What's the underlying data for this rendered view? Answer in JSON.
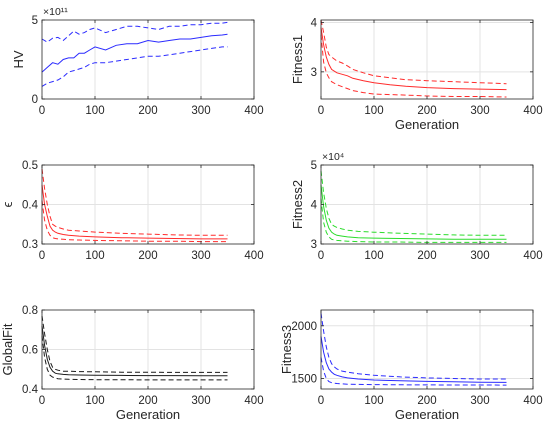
{
  "chart_data": [
    {
      "type": "line",
      "ylabel": "HV",
      "xlabel": "",
      "color": "#2b2bff",
      "xlim": [
        0,
        400
      ],
      "ylim": [
        0,
        5
      ],
      "xticks": [
        0,
        100,
        200,
        300,
        400
      ],
      "xtick_labels": [
        "0",
        "100",
        "200",
        "300",
        "400"
      ],
      "yticks": [
        0,
        5
      ],
      "ytick_labels": [
        "0",
        "5"
      ],
      "exponent_label": "×10¹¹",
      "grid": true,
      "x": [
        0,
        10,
        20,
        30,
        40,
        50,
        60,
        70,
        80,
        90,
        100,
        120,
        140,
        160,
        180,
        200,
        220,
        240,
        260,
        280,
        300,
        320,
        340,
        350
      ],
      "series": [
        {
          "style": "dashed",
          "values": [
            3.8,
            3.6,
            3.85,
            3.9,
            3.7,
            4.0,
            4.3,
            4.1,
            4.2,
            4.4,
            4.5,
            4.2,
            4.4,
            4.6,
            4.6,
            4.5,
            4.4,
            4.6,
            4.6,
            4.7,
            4.7,
            4.8,
            4.8,
            4.85
          ]
        },
        {
          "style": "solid",
          "values": [
            1.7,
            2.0,
            2.3,
            2.2,
            2.5,
            2.6,
            2.6,
            2.9,
            2.9,
            3.1,
            3.3,
            3.1,
            3.4,
            3.5,
            3.5,
            3.7,
            3.6,
            3.7,
            3.8,
            3.8,
            3.9,
            4.0,
            4.05,
            4.1
          ]
        },
        {
          "style": "dashed",
          "values": [
            0.8,
            1.0,
            1.1,
            1.2,
            1.4,
            1.7,
            1.8,
            1.9,
            2.0,
            2.2,
            2.3,
            2.3,
            2.4,
            2.5,
            2.6,
            2.7,
            2.7,
            2.8,
            2.9,
            3.0,
            3.1,
            3.2,
            3.3,
            3.3
          ]
        }
      ]
    },
    {
      "type": "line",
      "ylabel": "Fitness1",
      "xlabel": "Generation",
      "color": "#ff2b2b",
      "xlim": [
        0,
        400
      ],
      "ylim": [
        2.45,
        4.05
      ],
      "xticks": [
        0,
        100,
        200,
        300,
        400
      ],
      "xtick_labels": [
        "0",
        "100",
        "200",
        "300",
        "400"
      ],
      "yticks": [
        3,
        4
      ],
      "ytick_labels": [
        "3",
        "4"
      ],
      "exponent_label": "",
      "grid": true,
      "x": [
        0,
        5,
        10,
        15,
        20,
        30,
        40,
        50,
        60,
        80,
        100,
        130,
        160,
        200,
        250,
        300,
        350
      ],
      "series": [
        {
          "style": "dashed",
          "values": [
            4.05,
            3.8,
            3.5,
            3.35,
            3.3,
            3.22,
            3.18,
            3.12,
            3.05,
            2.98,
            2.92,
            2.88,
            2.84,
            2.82,
            2.8,
            2.78,
            2.76
          ]
        },
        {
          "style": "solid",
          "values": [
            3.9,
            3.55,
            3.3,
            3.15,
            3.05,
            2.98,
            2.95,
            2.92,
            2.87,
            2.82,
            2.78,
            2.74,
            2.71,
            2.68,
            2.66,
            2.65,
            2.64
          ]
        },
        {
          "style": "dashed",
          "values": [
            3.75,
            3.2,
            2.98,
            2.88,
            2.8,
            2.74,
            2.7,
            2.66,
            2.62,
            2.58,
            2.55,
            2.54,
            2.53,
            2.51,
            2.5,
            2.5,
            2.49
          ]
        }
      ]
    },
    {
      "type": "line",
      "ylabel": "ϵ",
      "xlabel": "",
      "color": "#ff2b2b",
      "xlim": [
        0,
        400
      ],
      "ylim": [
        0.3,
        0.5
      ],
      "xticks": [
        0,
        100,
        200,
        300,
        400
      ],
      "xtick_labels": [
        "0",
        "100",
        "200",
        "300",
        "400"
      ],
      "yticks": [
        0.3,
        0.4,
        0.5
      ],
      "ytick_labels": [
        "0.3",
        "0.4",
        "0.5"
      ],
      "exponent_label": "",
      "grid": true,
      "x": [
        0,
        5,
        10,
        15,
        20,
        25,
        30,
        40,
        50,
        70,
        100,
        150,
        200,
        250,
        300,
        350
      ],
      "series": [
        {
          "style": "dashed",
          "values": [
            0.49,
            0.44,
            0.4,
            0.37,
            0.35,
            0.345,
            0.342,
            0.338,
            0.335,
            0.333,
            0.33,
            0.327,
            0.325,
            0.323,
            0.322,
            0.322
          ]
        },
        {
          "style": "solid",
          "values": [
            0.45,
            0.4,
            0.37,
            0.345,
            0.335,
            0.33,
            0.327,
            0.324,
            0.322,
            0.32,
            0.318,
            0.316,
            0.315,
            0.314,
            0.313,
            0.313
          ]
        },
        {
          "style": "dashed",
          "values": [
            0.41,
            0.36,
            0.335,
            0.322,
            0.316,
            0.314,
            0.313,
            0.312,
            0.311,
            0.31,
            0.309,
            0.308,
            0.307,
            0.307,
            0.306,
            0.306
          ]
        }
      ]
    },
    {
      "type": "line",
      "ylabel": "Fitness2",
      "xlabel": "",
      "color": "#2bdc2b",
      "xlim": [
        0,
        400
      ],
      "ylim": [
        3,
        5
      ],
      "xticks": [
        0,
        100,
        200,
        300,
        400
      ],
      "xtick_labels": [
        "0",
        "100",
        "200",
        "300",
        "400"
      ],
      "yticks": [
        3,
        4,
        5
      ],
      "ytick_labels": [
        "3",
        "4",
        "5"
      ],
      "exponent_label": "×10⁴",
      "grid": true,
      "x": [
        0,
        5,
        10,
        15,
        20,
        25,
        30,
        40,
        50,
        70,
        100,
        150,
        200,
        250,
        300,
        350
      ],
      "series": [
        {
          "style": "dashed",
          "values": [
            4.85,
            4.3,
            3.9,
            3.65,
            3.5,
            3.45,
            3.42,
            3.38,
            3.35,
            3.32,
            3.3,
            3.27,
            3.25,
            3.23,
            3.22,
            3.22
          ]
        },
        {
          "style": "solid",
          "values": [
            4.5,
            3.95,
            3.6,
            3.4,
            3.3,
            3.25,
            3.22,
            3.2,
            3.18,
            3.16,
            3.15,
            3.14,
            3.13,
            3.12,
            3.12,
            3.12
          ]
        },
        {
          "style": "dashed",
          "values": [
            4.15,
            3.55,
            3.3,
            3.18,
            3.12,
            3.1,
            3.09,
            3.08,
            3.07,
            3.06,
            3.05,
            3.05,
            3.04,
            3.04,
            3.04,
            3.04
          ]
        }
      ]
    },
    {
      "type": "line",
      "ylabel": "GlobalFit",
      "xlabel": "Generation",
      "color": "#1a1a1a",
      "xlim": [
        0,
        400
      ],
      "ylim": [
        0.4,
        0.8
      ],
      "xticks": [
        0,
        100,
        200,
        300,
        400
      ],
      "xtick_labels": [
        "0",
        "100",
        "200",
        "300",
        "400"
      ],
      "yticks": [
        0.4,
        0.6,
        0.8
      ],
      "ytick_labels": [
        "0.4",
        "0.6",
        "0.8"
      ],
      "exponent_label": "",
      "grid": true,
      "x": [
        0,
        5,
        10,
        15,
        20,
        25,
        30,
        40,
        50,
        70,
        100,
        150,
        200,
        250,
        300,
        350
      ],
      "series": [
        {
          "style": "dashed",
          "values": [
            0.77,
            0.68,
            0.6,
            0.54,
            0.51,
            0.5,
            0.495,
            0.49,
            0.49,
            0.488,
            0.487,
            0.485,
            0.485,
            0.484,
            0.484,
            0.484
          ]
        },
        {
          "style": "solid",
          "values": [
            0.72,
            0.62,
            0.55,
            0.51,
            0.49,
            0.48,
            0.477,
            0.474,
            0.472,
            0.471,
            0.47,
            0.469,
            0.468,
            0.468,
            0.467,
            0.467
          ]
        },
        {
          "style": "dashed",
          "values": [
            0.67,
            0.56,
            0.5,
            0.47,
            0.46,
            0.455,
            0.452,
            0.45,
            0.449,
            0.448,
            0.447,
            0.447,
            0.446,
            0.446,
            0.446,
            0.446
          ]
        }
      ]
    },
    {
      "type": "line",
      "ylabel": "Fitness3",
      "xlabel": "Generation",
      "color": "#2b2bff",
      "xlim": [
        0,
        400
      ],
      "ylim": [
        1400,
        2150
      ],
      "xticks": [
        0,
        100,
        200,
        300,
        400
      ],
      "xtick_labels": [
        "0",
        "100",
        "200",
        "300",
        "400"
      ],
      "yticks": [
        1500,
        2000
      ],
      "ytick_labels": [
        "1500",
        "2000"
      ],
      "exponent_label": "",
      "grid": true,
      "x": [
        0,
        5,
        10,
        15,
        20,
        25,
        30,
        40,
        50,
        70,
        100,
        150,
        200,
        250,
        300,
        350
      ],
      "series": [
        {
          "style": "dashed",
          "values": [
            2120,
            1950,
            1800,
            1700,
            1640,
            1610,
            1590,
            1570,
            1560,
            1545,
            1530,
            1515,
            1505,
            1500,
            1495,
            1495
          ]
        },
        {
          "style": "solid",
          "values": [
            1900,
            1750,
            1650,
            1590,
            1560,
            1540,
            1530,
            1515,
            1505,
            1495,
            1485,
            1478,
            1472,
            1468,
            1465,
            1463
          ]
        },
        {
          "style": "dashed",
          "values": [
            1700,
            1570,
            1500,
            1470,
            1460,
            1455,
            1452,
            1448,
            1446,
            1444,
            1442,
            1440,
            1439,
            1438,
            1438,
            1437
          ]
        }
      ]
    }
  ]
}
